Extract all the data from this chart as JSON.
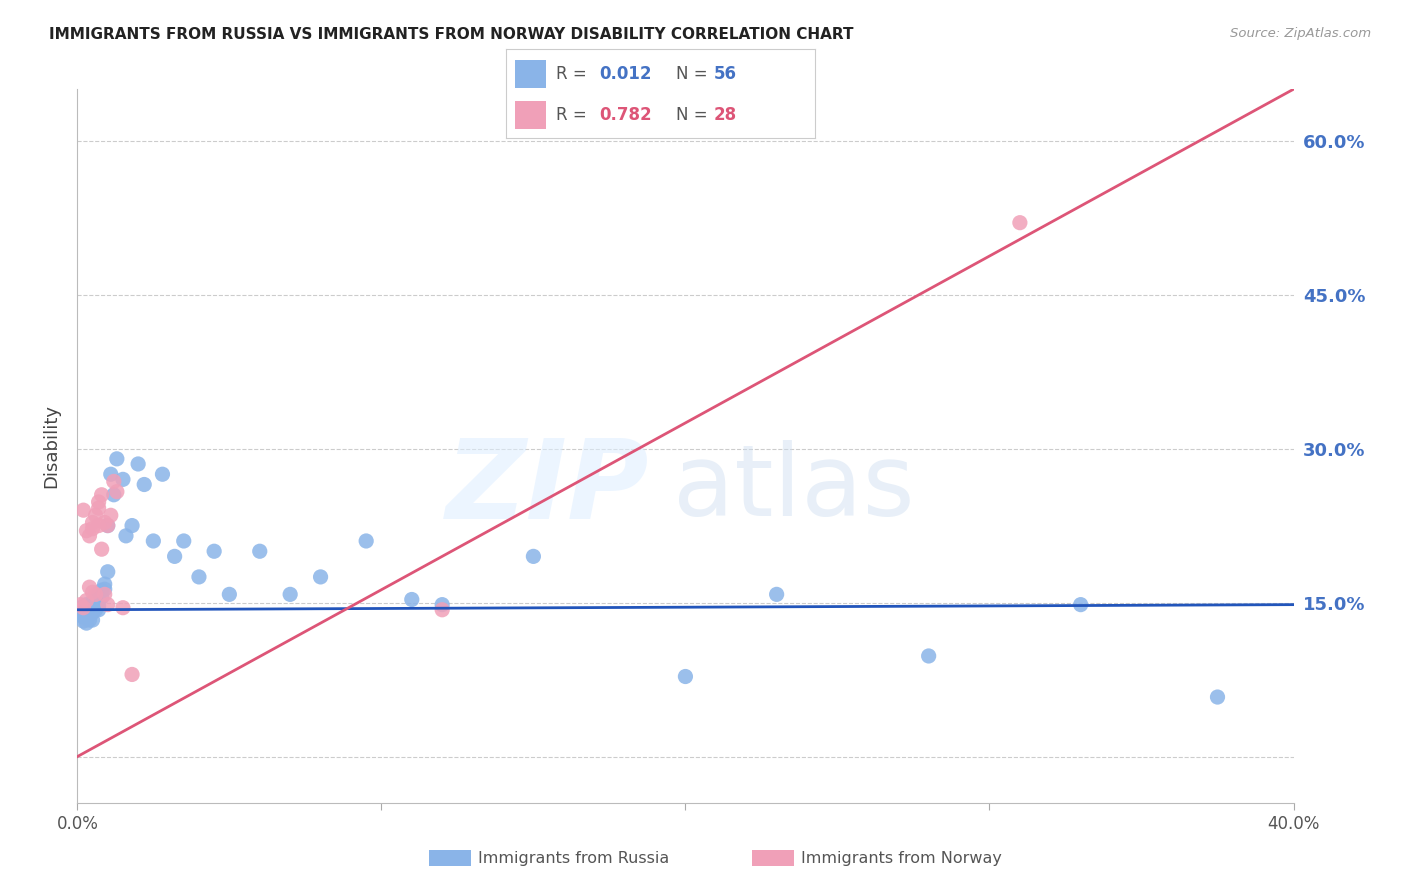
{
  "title": "IMMIGRANTS FROM RUSSIA VS IMMIGRANTS FROM NORWAY DISABILITY CORRELATION CHART",
  "source": "Source: ZipAtlas.com",
  "ylabel": "Disability",
  "xlim": [
    0.0,
    0.4
  ],
  "ylim": [
    -0.045,
    0.65
  ],
  "yticks": [
    0.0,
    0.15,
    0.3,
    0.45,
    0.6
  ],
  "ytick_labels": [
    "",
    "15.0%",
    "30.0%",
    "45.0%",
    "60.0%"
  ],
  "xtick_positions": [
    0.0,
    0.1,
    0.2,
    0.3,
    0.4
  ],
  "xtick_labels": [
    "0.0%",
    "",
    "",
    "",
    "40.0%"
  ],
  "russia_color": "#8ab4e8",
  "norway_color": "#f0a0b8",
  "russia_line_color": "#2255bb",
  "norway_line_color": "#dd5577",
  "russia_R": 0.012,
  "russia_N": 56,
  "norway_R": 0.782,
  "norway_N": 28,
  "legend_label_russia": "Immigrants from Russia",
  "legend_label_norway": "Immigrants from Norway",
  "norway_line_x0": 0.0,
  "norway_line_y0": 0.0,
  "norway_line_x1": 0.4,
  "norway_line_y1": 0.65,
  "russia_line_x0": 0.0,
  "russia_line_y0": 0.143,
  "russia_line_x1": 0.4,
  "russia_line_y1": 0.148,
  "russia_x": [
    0.001,
    0.001,
    0.002,
    0.002,
    0.002,
    0.003,
    0.003,
    0.003,
    0.003,
    0.004,
    0.004,
    0.004,
    0.005,
    0.005,
    0.005,
    0.005,
    0.006,
    0.006,
    0.006,
    0.007,
    0.007,
    0.007,
    0.007,
    0.008,
    0.008,
    0.009,
    0.009,
    0.01,
    0.01,
    0.011,
    0.012,
    0.013,
    0.015,
    0.016,
    0.018,
    0.02,
    0.022,
    0.025,
    0.028,
    0.032,
    0.035,
    0.04,
    0.045,
    0.05,
    0.06,
    0.07,
    0.08,
    0.095,
    0.11,
    0.12,
    0.15,
    0.2,
    0.23,
    0.28,
    0.33,
    0.375
  ],
  "russia_y": [
    0.145,
    0.138,
    0.143,
    0.136,
    0.132,
    0.148,
    0.143,
    0.137,
    0.13,
    0.145,
    0.138,
    0.133,
    0.15,
    0.145,
    0.14,
    0.133,
    0.152,
    0.147,
    0.143,
    0.158,
    0.153,
    0.147,
    0.143,
    0.162,
    0.155,
    0.168,
    0.163,
    0.225,
    0.18,
    0.275,
    0.255,
    0.29,
    0.27,
    0.215,
    0.225,
    0.285,
    0.265,
    0.21,
    0.275,
    0.195,
    0.21,
    0.175,
    0.2,
    0.158,
    0.2,
    0.158,
    0.175,
    0.21,
    0.153,
    0.148,
    0.195,
    0.078,
    0.158,
    0.098,
    0.148,
    0.058
  ],
  "norway_x": [
    0.001,
    0.002,
    0.002,
    0.003,
    0.003,
    0.004,
    0.004,
    0.005,
    0.005,
    0.005,
    0.006,
    0.006,
    0.007,
    0.007,
    0.007,
    0.008,
    0.008,
    0.009,
    0.009,
    0.01,
    0.01,
    0.011,
    0.012,
    0.013,
    0.015,
    0.018,
    0.12,
    0.31
  ],
  "norway_y": [
    0.148,
    0.145,
    0.24,
    0.152,
    0.22,
    0.215,
    0.165,
    0.222,
    0.228,
    0.16,
    0.158,
    0.235,
    0.248,
    0.242,
    0.225,
    0.202,
    0.255,
    0.228,
    0.158,
    0.148,
    0.225,
    0.235,
    0.268,
    0.258,
    0.145,
    0.08,
    0.143,
    0.52
  ]
}
